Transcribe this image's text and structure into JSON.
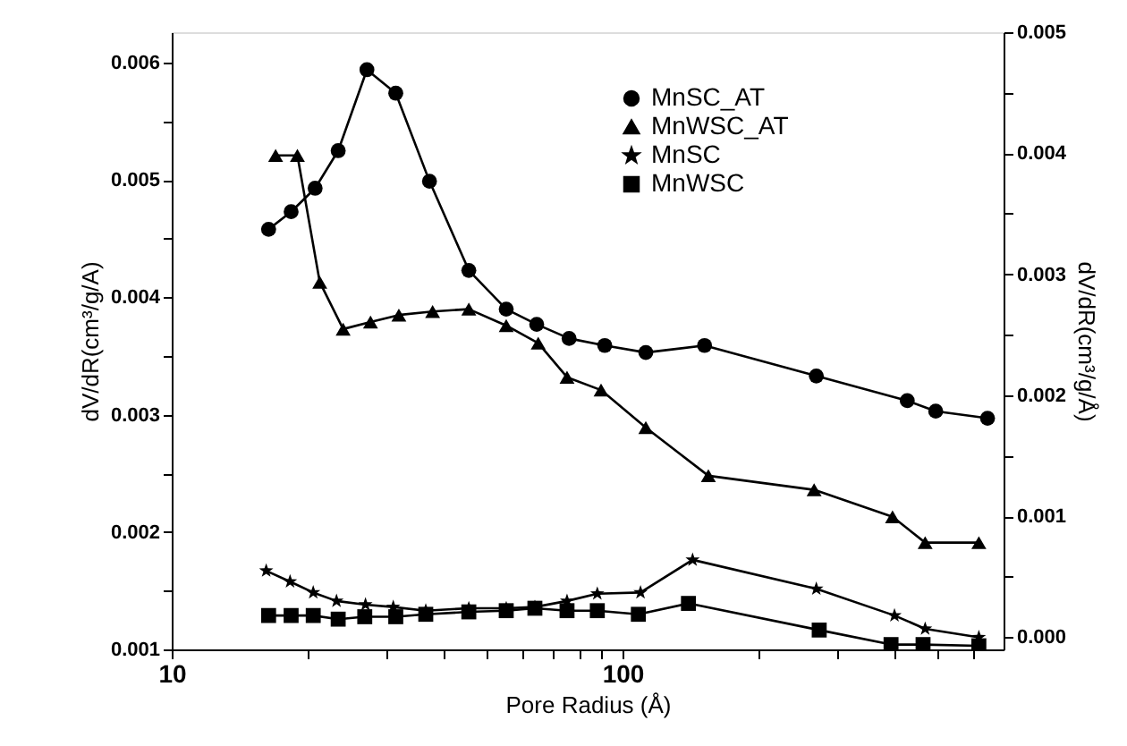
{
  "chart_data": {
    "type": "line",
    "xlabel": "Pore Radius (Å)",
    "ylabel": "dV/dR(cm³/g/A)",
    "y2label": "dV/dR(cm³/g/Å)",
    "log": "x",
    "grid": false,
    "legend": "top right",
    "line_style": "solid",
    "xlim": [
      10,
      700
    ],
    "xticks": [
      10,
      {
        "value": 20,
        "label": null
      },
      {
        "value": 30,
        "label": null
      },
      {
        "value": 40,
        "label": null
      },
      {
        "value": 50,
        "label": null
      },
      {
        "value": 60,
        "label": null
      },
      {
        "value": 70,
        "label": null
      },
      {
        "value": 80,
        "label": null
      },
      {
        "value": 90,
        "label": null
      },
      100,
      {
        "value": 200,
        "label": null
      },
      {
        "value": 300,
        "label": null
      },
      {
        "value": 400,
        "label": null
      },
      {
        "value": 500,
        "label": null
      },
      {
        "value": 600,
        "label": null
      }
    ],
    "ylim": [
      0.001,
      0.00626
    ],
    "yticks": [
      0.001,
      {
        "value": 0.0015,
        "label": null
      },
      0.002,
      {
        "value": 0.0025,
        "label": null
      },
      0.003,
      {
        "value": 0.0035,
        "label": null
      },
      0.004,
      {
        "value": 0.0045,
        "label": null
      },
      0.005,
      {
        "value": 0.0055,
        "label": null
      },
      0.006
    ],
    "y2lim": [
      -0.0001,
      0.005
    ],
    "y2ticks": [
      {
        "value": 0,
        "label": "0.000"
      },
      {
        "value": 0.0005,
        "label": null
      },
      0.001,
      {
        "value": 0.0015,
        "label": null
      },
      0.002,
      {
        "value": 0.0025,
        "label": null
      },
      0.003,
      {
        "value": 0.0035,
        "label": null
      },
      0.004,
      {
        "value": 0.0045,
        "label": null
      },
      0.005
    ],
    "series": [
      {
        "name": "MnSC_AT",
        "color": "#000000",
        "marker": "circle",
        "axis": "y",
        "x": [
          16.4,
          18.4,
          20.8,
          23.4,
          27.1,
          31.4,
          37.3,
          45.6,
          55.2,
          64.5,
          76.1,
          91.3,
          112.6,
          152,
          269,
          428,
          495,
          645
        ],
        "values": [
          0.00458,
          0.00473,
          0.00493,
          0.00525,
          0.00594,
          0.00574,
          0.00499,
          0.00423,
          0.0039,
          0.00377,
          0.00365,
          0.00359,
          0.00353,
          0.00359,
          0.00333,
          0.00312,
          0.00303,
          0.00297
        ]
      },
      {
        "name": "MnWSC_AT",
        "color": "#000000",
        "marker": "triangle",
        "axis": "y",
        "x": [
          17.0,
          19.0,
          21.3,
          24.0,
          27.6,
          31.9,
          37.9,
          45.6,
          55.2,
          65.0,
          75.3,
          89.6,
          112.6,
          155,
          266,
          397,
          469,
          617
        ],
        "values": [
          0.00521,
          0.00521,
          0.00413,
          0.00373,
          0.00379,
          0.00385,
          0.00388,
          0.0039,
          0.00376,
          0.00361,
          0.00332,
          0.00321,
          0.00289,
          0.00248,
          0.00236,
          0.00213,
          0.00191,
          0.00191
        ]
      },
      {
        "name": "MnSC",
        "color": "#000000",
        "marker": "star",
        "axis": "y2",
        "x": [
          16.2,
          18.3,
          20.6,
          23.2,
          26.9,
          31.0,
          36.6,
          45.6,
          55.2,
          63.9,
          75.3,
          87.9,
          109.6,
          143,
          269,
          401,
          469,
          617
        ],
        "values": [
          0.00055,
          0.00046,
          0.00037,
          0.0003,
          0.00027,
          0.00025,
          0.00022,
          0.00024,
          0.00024,
          0.00025,
          0.0003,
          0.00036,
          0.00037,
          0.00064,
          0.0004,
          0.00018,
          7e-05,
          0.0
        ]
      },
      {
        "name": "MnWSC",
        "color": "#000000",
        "marker": "square",
        "axis": "y2",
        "x": [
          16.4,
          18.4,
          20.6,
          23.4,
          26.8,
          31.4,
          36.6,
          45.6,
          55.2,
          63.9,
          75.3,
          87.9,
          108.4,
          140,
          273,
          394,
          464,
          617
        ],
        "values": [
          0.00018,
          0.00018,
          0.00018,
          0.00015,
          0.00017,
          0.00017,
          0.00019,
          0.00021,
          0.00022,
          0.00024,
          0.00022,
          0.00022,
          0.00019,
          0.00028,
          6e-05,
          -6e-05,
          -6e-05,
          -7e-05
        ]
      }
    ]
  }
}
